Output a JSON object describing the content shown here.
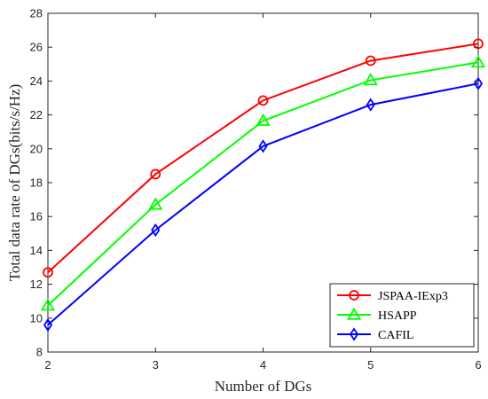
{
  "chart_data": {
    "type": "line",
    "xlabel": "Number of DGs",
    "ylabel": "Total data rate of DGs(bits/s/Hz)",
    "x": [
      2,
      3,
      4,
      5,
      6
    ],
    "xlim": [
      2,
      6
    ],
    "ylim": [
      8,
      28
    ],
    "xticks": [
      2,
      3,
      4,
      5,
      6
    ],
    "yticks": [
      8,
      10,
      12,
      14,
      16,
      18,
      20,
      22,
      24,
      26,
      28
    ],
    "grid": false,
    "legend_position": "bottom-right",
    "series": [
      {
        "name": "JSPAA-IExp3",
        "values": [
          12.7,
          18.5,
          22.85,
          25.2,
          26.2
        ],
        "color": "#ff0000",
        "marker": "circle"
      },
      {
        "name": "HSAPP",
        "values": [
          10.75,
          16.7,
          21.65,
          24.05,
          25.1
        ],
        "color": "#00ff00",
        "marker": "triangle"
      },
      {
        "name": "CAFIL",
        "values": [
          9.6,
          15.2,
          20.15,
          22.6,
          23.85
        ],
        "color": "#0000ff",
        "marker": "diamond"
      }
    ]
  }
}
